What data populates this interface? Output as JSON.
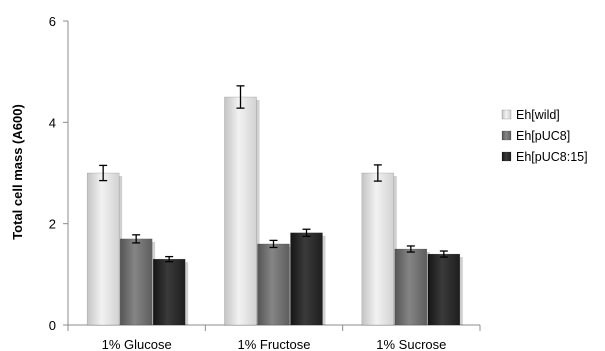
{
  "chart_data": {
    "type": "bar",
    "title": "",
    "xlabel": "",
    "ylabel": "Total cell mass (A600)",
    "ylim": [
      0,
      6
    ],
    "yticks": [
      0,
      2,
      4,
      6
    ],
    "grid": false,
    "legend_position": "right",
    "categories": [
      "1% Glucose",
      "1% Fructose",
      "1% Sucrose"
    ],
    "series": [
      {
        "name": "Eh[wild]",
        "values": [
          3.0,
          4.5,
          3.0
        ],
        "errors": [
          0.15,
          0.22,
          0.16
        ],
        "color": "#dcdcdc"
      },
      {
        "name": "Eh[pUC8]",
        "values": [
          1.7,
          1.6,
          1.5
        ],
        "errors": [
          0.08,
          0.07,
          0.06
        ],
        "color": "#6e6e6e"
      },
      {
        "name": "Eh[pUC8:15]",
        "values": [
          1.3,
          1.82,
          1.4
        ],
        "errors": [
          0.05,
          0.07,
          0.06
        ],
        "color": "#262626"
      }
    ]
  }
}
